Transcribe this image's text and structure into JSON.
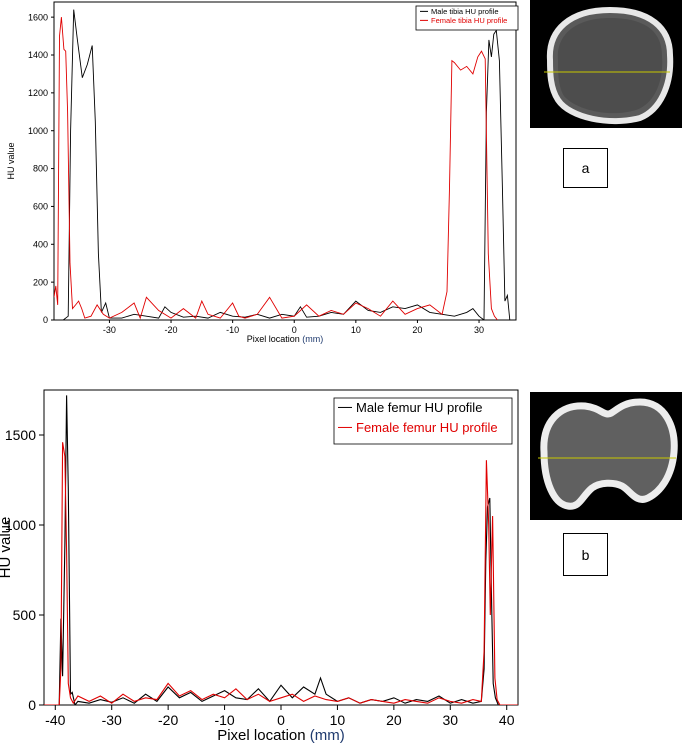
{
  "panels": {
    "a": {
      "label": "a"
    },
    "b": {
      "label": "b"
    }
  },
  "chart_data": [
    {
      "type": "line",
      "title": "",
      "xlabel": "Pixel location",
      "xlabel_unit": "(mm)",
      "ylabel": "HU value",
      "xlim": [
        -39,
        36
      ],
      "ylim": [
        0,
        1680
      ],
      "x_ticks": [
        -30,
        -20,
        -10,
        0,
        10,
        20,
        30
      ],
      "y_ticks": [
        0,
        200,
        400,
        600,
        800,
        1000,
        1200,
        1400,
        1600
      ],
      "legend_position": "top-right",
      "grid": false,
      "series": [
        {
          "name": "Male tibia HU profile",
          "color": "#000000",
          "x": [
            -39,
            -37.5,
            -36.7,
            -36.3,
            -35.8,
            -35.2,
            -34.4,
            -33.6,
            -32.8,
            -32.3,
            -31.8,
            -31.3,
            -30.6,
            -30,
            -28,
            -26,
            -24,
            -22,
            -21,
            -20,
            -18,
            -16,
            -14,
            -12,
            -10,
            -8,
            -6,
            -4,
            -2,
            0,
            1,
            2,
            4,
            6,
            8,
            10,
            12,
            14,
            16,
            18,
            20,
            22,
            24,
            26,
            28,
            29,
            30,
            30.8,
            31.2,
            31.6,
            32,
            32.4,
            32.8,
            33.3,
            33.8,
            34.2,
            34.6,
            35
          ],
          "y": [
            0,
            0,
            20,
            1000,
            1640,
            1480,
            1280,
            1350,
            1450,
            1050,
            350,
            40,
            90,
            10,
            10,
            30,
            20,
            10,
            70,
            40,
            15,
            20,
            10,
            40,
            20,
            15,
            30,
            10,
            30,
            20,
            70,
            15,
            20,
            40,
            30,
            100,
            50,
            40,
            70,
            60,
            80,
            40,
            30,
            20,
            40,
            60,
            20,
            0,
            1100,
            1480,
            1390,
            1510,
            1530,
            1370,
            700,
            100,
            130,
            0
          ]
        },
        {
          "name": "Female tibia HU profile",
          "color": "#e00000",
          "x": [
            -39,
            -38.7,
            -38.4,
            -38.1,
            -37.8,
            -37.4,
            -37.1,
            -36.8,
            -36.4,
            -36,
            -35.5,
            -35,
            -34.5,
            -34,
            -33,
            -32,
            -31,
            -30,
            -28,
            -26,
            -25,
            -24,
            -22,
            -20,
            -18,
            -16,
            -15,
            -14,
            -12,
            -10,
            -9,
            -8,
            -6,
            -4,
            -2,
            0,
            2,
            4,
            6,
            8,
            10,
            12,
            14,
            16,
            18,
            20,
            22,
            24,
            24.8,
            25.2,
            25.6,
            26,
            27,
            28,
            29,
            29.8,
            30.4,
            31,
            31.5,
            32,
            32.5,
            33
          ],
          "y": [
            120,
            180,
            80,
            1500,
            1600,
            1430,
            1420,
            1100,
            300,
            60,
            80,
            100,
            60,
            10,
            20,
            80,
            30,
            10,
            40,
            90,
            10,
            120,
            50,
            10,
            60,
            10,
            100,
            30,
            10,
            90,
            20,
            10,
            30,
            120,
            10,
            20,
            80,
            20,
            50,
            30,
            90,
            60,
            20,
            100,
            30,
            60,
            80,
            30,
            150,
            700,
            1370,
            1360,
            1320,
            1340,
            1300,
            1390,
            1420,
            1380,
            350,
            60,
            20,
            0
          ]
        }
      ]
    },
    {
      "type": "line",
      "title": "",
      "xlabel": "Pixel location",
      "xlabel_unit": "(mm)",
      "ylabel": "HU value",
      "xlim": [
        -42,
        42
      ],
      "ylim": [
        0,
        1750
      ],
      "x_ticks": [
        -40,
        -30,
        -20,
        -10,
        0,
        10,
        20,
        30,
        40
      ],
      "y_ticks": [
        0,
        500,
        1000,
        1500
      ],
      "legend_position": "top-right",
      "grid": false,
      "series": [
        {
          "name": "Male femur HU profile",
          "color": "#000000",
          "x": [
            -42,
            -40,
            -39.3,
            -39,
            -38.7,
            -38.3,
            -38,
            -37.7,
            -37.3,
            -37,
            -36.5,
            -36,
            -34,
            -32,
            -30,
            -28,
            -26,
            -24,
            -22,
            -20,
            -18,
            -16,
            -14,
            -12,
            -10,
            -8,
            -6,
            -4,
            -2,
            0,
            2,
            4,
            6,
            7,
            8,
            10,
            12,
            14,
            16,
            18,
            20,
            22,
            24,
            26,
            28,
            30,
            32,
            34,
            35.5,
            36,
            36.3,
            36.6,
            37,
            37.3,
            37.6,
            38,
            38.5,
            39,
            42
          ],
          "y": [
            0,
            0,
            0,
            480,
            160,
            900,
            1720,
            1200,
            60,
            70,
            0,
            20,
            10,
            30,
            15,
            40,
            10,
            60,
            20,
            100,
            40,
            70,
            20,
            50,
            80,
            40,
            30,
            90,
            20,
            110,
            40,
            100,
            60,
            150,
            60,
            20,
            40,
            10,
            30,
            20,
            40,
            10,
            30,
            20,
            50,
            10,
            30,
            10,
            20,
            200,
            800,
            1100,
            1150,
            600,
            120,
            40,
            0,
            0,
            0
          ]
        },
        {
          "name": "Female femur HU profile",
          "color": "#e00000",
          "x": [
            -42,
            -40,
            -39.3,
            -39,
            -38.7,
            -38.3,
            -38,
            -37.7,
            -37.3,
            -36.8,
            -36,
            -34,
            -32,
            -30,
            -28,
            -26,
            -24,
            -22,
            -20,
            -18,
            -16,
            -14,
            -12,
            -10,
            -8,
            -6,
            -4,
            -2,
            0,
            2,
            4,
            6,
            8,
            10,
            12,
            14,
            16,
            18,
            20,
            22,
            24,
            26,
            28,
            30,
            32,
            34,
            35.5,
            36,
            36.4,
            36.8,
            37.1,
            37.5,
            37.9,
            38.3,
            38.8,
            42
          ],
          "y": [
            0,
            0,
            0,
            200,
            1460,
            1380,
            850,
            120,
            40,
            10,
            50,
            20,
            50,
            10,
            60,
            20,
            40,
            30,
            120,
            50,
            80,
            30,
            60,
            40,
            90,
            30,
            60,
            20,
            40,
            60,
            20,
            50,
            30,
            20,
            40,
            10,
            30,
            20,
            10,
            30,
            20,
            10,
            40,
            20,
            10,
            30,
            20,
            300,
            1360,
            1000,
            500,
            1050,
            150,
            30,
            0,
            0
          ]
        }
      ]
    }
  ]
}
